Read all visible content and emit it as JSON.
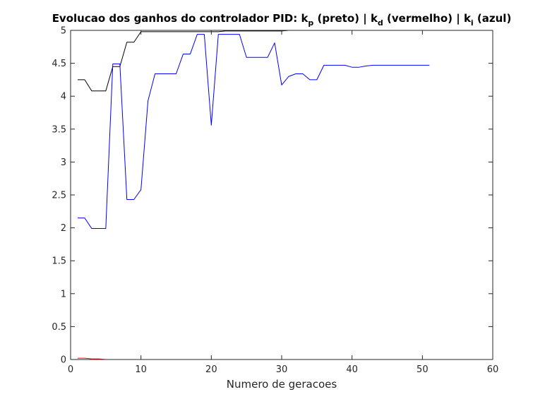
{
  "chart_data": {
    "type": "line",
    "title": {
      "prefix": "Evolucao dos ganhos do controlador PID: ",
      "parts": [
        {
          "text": "k",
          "sub": "p",
          "after": " (preto) | "
        },
        {
          "text": "k",
          "sub": "d",
          "after": " (vermelho) | "
        },
        {
          "text": "k",
          "sub": "i",
          "after": " (azul)"
        }
      ]
    },
    "xlabel": "Numero de geracoes",
    "ylabel": "",
    "xlim": [
      0,
      60
    ],
    "ylim": [
      0,
      5
    ],
    "xticks": [
      0,
      10,
      20,
      30,
      40,
      50,
      60
    ],
    "yticks": [
      0,
      0.5,
      1,
      1.5,
      2,
      2.5,
      3,
      3.5,
      4,
      4.5,
      5
    ],
    "grid": false,
    "series": [
      {
        "key": "kp",
        "color": "#000000",
        "x": [
          1,
          2,
          3,
          4,
          5,
          6,
          7,
          8,
          9,
          10,
          11,
          12,
          13,
          14,
          15,
          16,
          17,
          18,
          19,
          20,
          21,
          22,
          23,
          24,
          25,
          26,
          27,
          28,
          29,
          30,
          31,
          32,
          33,
          34,
          35,
          36,
          37,
          38,
          39,
          40,
          41,
          42,
          43,
          44,
          45,
          46,
          47,
          48,
          49,
          50,
          51
        ],
        "values": [
          4.25,
          4.25,
          4.08,
          4.08,
          4.08,
          4.45,
          4.45,
          4.82,
          4.82,
          4.98,
          4.98,
          4.98,
          4.98,
          4.98,
          4.98,
          4.98,
          4.98,
          4.98,
          4.98,
          4.98,
          4.98,
          4.99,
          4.99,
          4.99,
          4.99,
          4.99,
          4.99,
          4.99,
          4.99,
          4.99,
          5.0,
          5.0,
          5.0,
          5.0,
          5.0,
          5.0,
          5.0,
          5.0,
          5.0,
          5.0,
          5.0,
          5.0,
          5.0,
          5.0,
          5.0,
          5.0,
          5.0,
          5.0,
          5.0,
          5.0,
          5.0
        ]
      },
      {
        "key": "kd",
        "color": "#ff0000",
        "x": [
          1,
          2,
          3,
          4,
          5,
          6,
          10,
          20,
          30,
          40,
          51
        ],
        "values": [
          0.02,
          0.02,
          0.01,
          0.01,
          0.0,
          0.0,
          0.0,
          0.0,
          0.0,
          0.0,
          0.0
        ]
      },
      {
        "key": "ki",
        "color": "#0000ff",
        "x": [
          1,
          2,
          3,
          4,
          5,
          6,
          7,
          8,
          9,
          10,
          11,
          12,
          13,
          14,
          15,
          16,
          17,
          18,
          19,
          20,
          21,
          22,
          23,
          24,
          25,
          26,
          27,
          28,
          29,
          30,
          31,
          32,
          33,
          34,
          35,
          36,
          37,
          38,
          39,
          40,
          41,
          42,
          43,
          44,
          45,
          46,
          47,
          48,
          49,
          50,
          51
        ],
        "values": [
          2.15,
          2.15,
          1.99,
          1.99,
          1.99,
          4.49,
          4.49,
          2.43,
          2.43,
          2.58,
          3.93,
          4.34,
          4.34,
          4.34,
          4.34,
          4.64,
          4.64,
          4.94,
          4.94,
          3.56,
          4.94,
          4.94,
          4.94,
          4.94,
          4.59,
          4.59,
          4.59,
          4.59,
          4.81,
          4.17,
          4.3,
          4.34,
          4.34,
          4.25,
          4.25,
          4.47,
          4.47,
          4.47,
          4.47,
          4.44,
          4.44,
          4.46,
          4.47,
          4.47,
          4.47,
          4.47,
          4.47,
          4.47,
          4.47,
          4.47,
          4.47
        ]
      }
    ]
  }
}
